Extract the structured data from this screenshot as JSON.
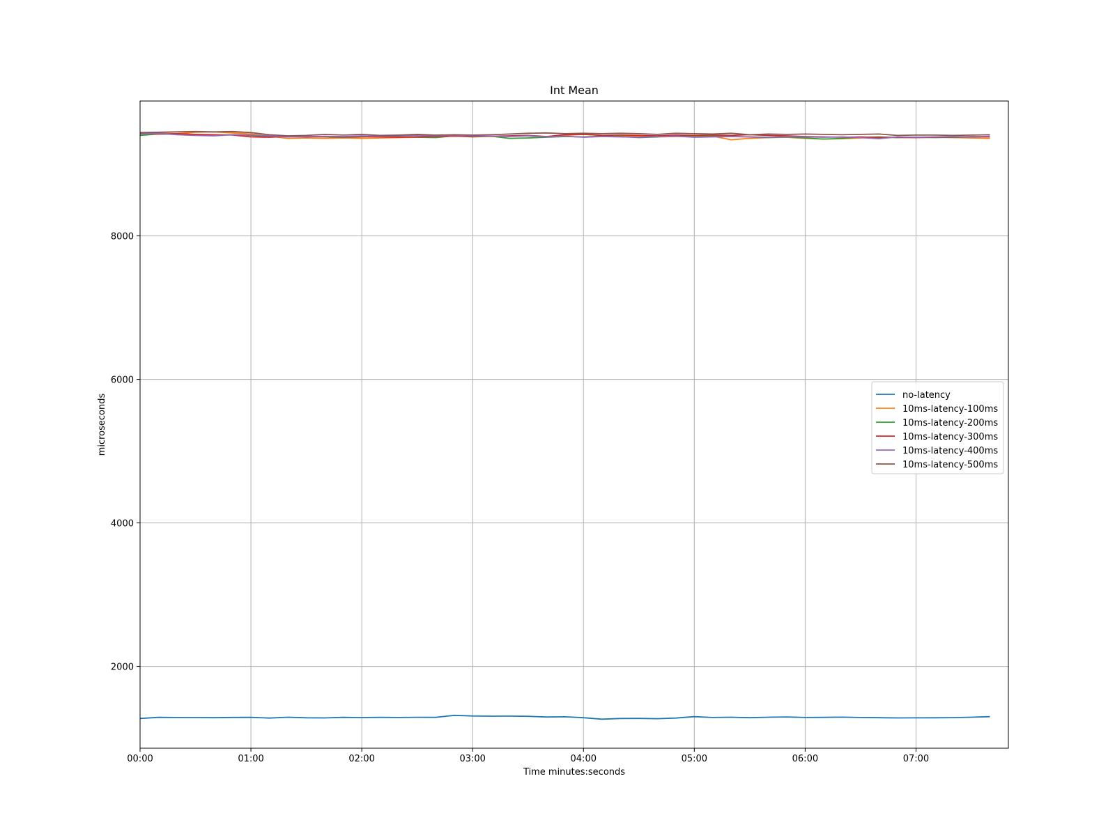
{
  "chart_data": {
    "type": "line",
    "title": "Int Mean",
    "xlabel": "Time minutes:seconds",
    "ylabel": "microseconds",
    "xlim": [
      "00:00",
      "07:50"
    ],
    "ylim": [
      860,
      9880
    ],
    "x_ticks": [
      "00:00",
      "01:00",
      "02:00",
      "03:00",
      "04:00",
      "05:00",
      "06:00",
      "07:00"
    ],
    "y_ticks": [
      2000,
      4000,
      6000,
      8000
    ],
    "grid": true,
    "legend_position": "center-right",
    "x": [
      "00:00",
      "00:10",
      "00:20",
      "00:30",
      "00:40",
      "00:50",
      "01:00",
      "01:10",
      "01:20",
      "01:30",
      "01:40",
      "01:50",
      "02:00",
      "02:10",
      "02:20",
      "02:30",
      "02:40",
      "02:50",
      "03:00",
      "03:10",
      "03:20",
      "03:30",
      "03:40",
      "03:50",
      "04:00",
      "04:10",
      "04:20",
      "04:30",
      "04:40",
      "04:50",
      "05:00",
      "05:10",
      "05:20",
      "05:30",
      "05:40",
      "05:50",
      "06:00",
      "06:10",
      "06:20",
      "06:30",
      "06:40",
      "06:50",
      "07:00",
      "07:10",
      "07:20",
      "07:30",
      "07:40"
    ],
    "series": [
      {
        "name": "no-latency",
        "color": "#1f77b4",
        "values": [
          1275,
          1290,
          1288,
          1287,
          1285,
          1289,
          1290,
          1280,
          1292,
          1284,
          1282,
          1290,
          1287,
          1290,
          1288,
          1291,
          1290,
          1318,
          1310,
          1307,
          1308,
          1305,
          1295,
          1298,
          1285,
          1265,
          1275,
          1276,
          1272,
          1280,
          1300,
          1288,
          1292,
          1285,
          1292,
          1296,
          1288,
          1290,
          1293,
          1288,
          1285,
          1282,
          1283,
          1284,
          1286,
          1292,
          1300
        ]
      },
      {
        "name": "10ms-latency-100ms",
        "color": "#ff7f0e",
        "values": [
          9440,
          9430,
          9425,
          9445,
          9450,
          9435,
          9420,
          9390,
          9360,
          9365,
          9360,
          9365,
          9360,
          9365,
          9370,
          9375,
          9385,
          9395,
          9390,
          9385,
          9390,
          9395,
          9380,
          9400,
          9415,
          9400,
          9395,
          9390,
          9380,
          9385,
          9385,
          9390,
          9340,
          9360,
          9370,
          9375,
          9360,
          9350,
          9355,
          9365,
          9375,
          9370,
          9370,
          9375,
          9370,
          9365,
          9360
        ]
      },
      {
        "name": "10ms-latency-200ms",
        "color": "#2ca02c",
        "values": [
          9400,
          9420,
          9415,
          9410,
          9405,
          9410,
          9400,
          9380,
          9390,
          9385,
          9380,
          9375,
          9380,
          9385,
          9380,
          9375,
          9370,
          9395,
          9380,
          9390,
          9360,
          9365,
          9375,
          9385,
          9380,
          9390,
          9385,
          9370,
          9380,
          9400,
          9380,
          9390,
          9385,
          9380,
          9370,
          9380,
          9365,
          9350,
          9360,
          9375,
          9380,
          9370,
          9375,
          9370,
          9375,
          9380,
          9385
        ]
      },
      {
        "name": "10ms-latency-300ms",
        "color": "#d62728",
        "values": [
          9430,
          9420,
          9425,
          9415,
          9410,
          9405,
          9380,
          9375,
          9385,
          9380,
          9385,
          9380,
          9385,
          9380,
          9375,
          9380,
          9385,
          9390,
          9385,
          9390,
          9395,
          9400,
          9385,
          9410,
          9415,
          9400,
          9405,
          9400,
          9395,
          9405,
          9400,
          9405,
          9400,
          9410,
          9400,
          9395,
          9385,
          9380,
          9375,
          9380,
          9370,
          9375,
          9370,
          9375,
          9380,
          9385,
          9380
        ]
      },
      {
        "name": "10ms-latency-400ms",
        "color": "#9467bd",
        "values": [
          9420,
          9430,
          9410,
          9400,
          9395,
          9410,
          9405,
          9395,
          9380,
          9385,
          9390,
          9385,
          9395,
          9390,
          9395,
          9400,
          9395,
          9400,
          9395,
          9390,
          9385,
          9395,
          9380,
          9390,
          9375,
          9385,
          9380,
          9375,
          9385,
          9390,
          9375,
          9380,
          9385,
          9380,
          9375,
          9385,
          9380,
          9375,
          9380,
          9370,
          9355,
          9380,
          9375,
          9380,
          9385,
          9380,
          9390
        ]
      },
      {
        "name": "10ms-latency-500ms",
        "color": "#8c564b",
        "values": [
          9440,
          9445,
          9450,
          9455,
          9450,
          9455,
          9440,
          9410,
          9395,
          9400,
          9415,
          9405,
          9415,
          9400,
          9405,
          9415,
          9405,
          9410,
          9405,
          9410,
          9420,
          9430,
          9435,
          9425,
          9430,
          9425,
          9430,
          9425,
          9415,
          9430,
          9425,
          9420,
          9430,
          9410,
          9420,
          9415,
          9420,
          9415,
          9410,
          9415,
          9420,
          9400,
          9405,
          9405,
          9400,
          9405,
          9410
        ]
      }
    ]
  }
}
